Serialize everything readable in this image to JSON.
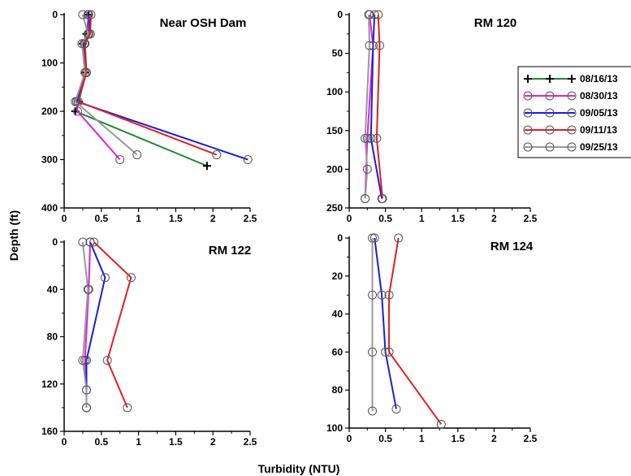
{
  "figure": {
    "xlabel": "Turbidity (NTU)",
    "ylabel": "Depth (ft)"
  },
  "legend": [
    {
      "name": "08/16/13",
      "color": "#1a8a2e",
      "marker": "plus"
    },
    {
      "name": "08/30/13",
      "color": "#e020e0",
      "marker": "circle"
    },
    {
      "name": "09/05/13",
      "color": "#1c1ce0",
      "marker": "circle"
    },
    {
      "name": "09/11/13",
      "color": "#e02020",
      "marker": "circle"
    },
    {
      "name": "09/25/13",
      "color": "#999999",
      "marker": "circle"
    }
  ],
  "chart_data": [
    {
      "type": "line",
      "title": "Near OSH Dam",
      "xlim": [
        0,
        2.5
      ],
      "ylim": [
        0,
        400
      ],
      "y_inverted": true,
      "xticks": [
        "0",
        "0.5",
        "1",
        "1.5",
        "2",
        "2.5"
      ],
      "yticks": [
        "0",
        "100",
        "200",
        "300",
        "400"
      ],
      "series": [
        {
          "name": "08/16/13",
          "points": [
            [
              0.33,
              0
            ],
            [
              0.3,
              40
            ],
            [
              0.25,
              60
            ],
            [
              0.28,
              120
            ],
            [
              0.2,
              180
            ],
            [
              0.15,
              200
            ],
            [
              1.92,
              313
            ]
          ]
        },
        {
          "name": "08/30/13",
          "points": [
            [
              0.32,
              0
            ],
            [
              0.33,
              40
            ],
            [
              0.27,
              60
            ],
            [
              0.3,
              120
            ],
            [
              0.17,
              180
            ],
            [
              0.18,
              200
            ],
            [
              0.75,
              300
            ]
          ]
        },
        {
          "name": "09/05/13",
          "points": [
            [
              0.33,
              0
            ],
            [
              0.35,
              40
            ],
            [
              0.27,
              60
            ],
            [
              0.3,
              120
            ],
            [
              0.17,
              180
            ],
            [
              2.47,
              300
            ]
          ]
        },
        {
          "name": "09/11/13",
          "points": [
            [
              0.36,
              0
            ],
            [
              0.35,
              40
            ],
            [
              0.28,
              60
            ],
            [
              0.3,
              120
            ],
            [
              0.19,
              180
            ],
            [
              2.05,
              290
            ]
          ]
        },
        {
          "name": "09/25/13",
          "points": [
            [
              0.25,
              0
            ],
            [
              0.32,
              40
            ],
            [
              0.24,
              60
            ],
            [
              0.28,
              120
            ],
            [
              0.15,
              180
            ],
            [
              0.98,
              290
            ]
          ]
        }
      ]
    },
    {
      "type": "line",
      "title": "RM 120",
      "xlim": [
        0,
        2.5
      ],
      "ylim": [
        0,
        250
      ],
      "y_inverted": true,
      "xticks": [
        "0",
        "0.5",
        "1",
        "1.5",
        "2",
        "2.5"
      ],
      "yticks": [
        "0",
        "50",
        "100",
        "150",
        "200",
        "250"
      ],
      "series": [
        {
          "name": "08/30/13",
          "points": [
            [
              0.28,
              0
            ],
            [
              0.33,
              40
            ],
            [
              0.25,
              160
            ],
            [
              0.22,
              238
            ]
          ]
        },
        {
          "name": "09/05/13",
          "points": [
            [
              0.35,
              0
            ],
            [
              0.33,
              40
            ],
            [
              0.3,
              160
            ],
            [
              0.45,
              238
            ]
          ]
        },
        {
          "name": "09/11/13",
          "points": [
            [
              0.4,
              0
            ],
            [
              0.42,
              40
            ],
            [
              0.38,
              160
            ],
            [
              0.46,
              238
            ]
          ]
        },
        {
          "name": "09/25/13",
          "points": [
            [
              0.27,
              0
            ],
            [
              0.28,
              40
            ],
            [
              0.22,
              160
            ],
            [
              0.25,
              200
            ],
            [
              0.22,
              238
            ]
          ]
        }
      ]
    },
    {
      "type": "line",
      "title": "RM 122",
      "xlim": [
        0,
        2.5
      ],
      "ylim": [
        0,
        160
      ],
      "y_inverted": true,
      "xticks": [
        "0",
        "0.5",
        "1",
        "1.5",
        "2",
        "2.5"
      ],
      "yticks": [
        "0",
        "40",
        "80",
        "120",
        "160"
      ],
      "series": [
        {
          "name": "08/30/13",
          "points": [
            [
              0.35,
              0
            ],
            [
              0.33,
              40
            ],
            [
              0.28,
              100
            ],
            [
              0.3,
              125
            ],
            [
              0.3,
              140
            ]
          ]
        },
        {
          "name": "09/05/13",
          "points": [
            [
              0.35,
              0
            ],
            [
              0.55,
              30
            ],
            [
              0.3,
              100
            ],
            [
              0.3,
              140
            ]
          ]
        },
        {
          "name": "09/11/13",
          "points": [
            [
              0.4,
              0
            ],
            [
              0.9,
              30
            ],
            [
              0.58,
              100
            ],
            [
              0.85,
              140
            ]
          ]
        },
        {
          "name": "09/25/13",
          "points": [
            [
              0.25,
              0
            ],
            [
              0.32,
              40
            ],
            [
              0.25,
              100
            ],
            [
              0.3,
              125
            ],
            [
              0.3,
              140
            ]
          ]
        }
      ]
    },
    {
      "type": "line",
      "title": "RM 124",
      "xlim": [
        0,
        2.5
      ],
      "ylim": [
        0,
        100
      ],
      "y_inverted": true,
      "xticks": [
        "0",
        "0.5",
        "1",
        "1.5",
        "2",
        "2.5"
      ],
      "yticks": [
        "0",
        "20",
        "40",
        "60",
        "80",
        "100"
      ],
      "series": [
        {
          "name": "09/05/13",
          "points": [
            [
              0.35,
              0
            ],
            [
              0.45,
              30
            ],
            [
              0.5,
              60
            ],
            [
              0.65,
              90
            ]
          ]
        },
        {
          "name": "09/11/13",
          "points": [
            [
              0.68,
              0
            ],
            [
              0.55,
              30
            ],
            [
              0.55,
              60
            ],
            [
              1.27,
              98
            ]
          ]
        },
        {
          "name": "09/25/13",
          "points": [
            [
              0.32,
              0
            ],
            [
              0.32,
              30
            ],
            [
              0.32,
              60
            ],
            [
              0.32,
              91
            ]
          ]
        }
      ]
    }
  ]
}
